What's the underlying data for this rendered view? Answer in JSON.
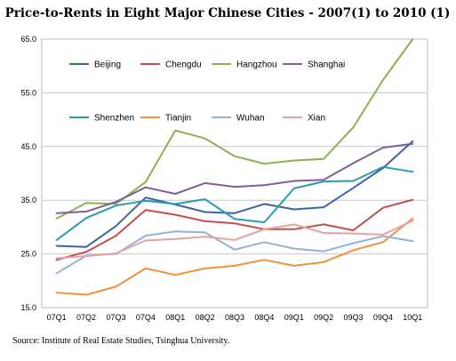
{
  "chart_data": {
    "type": "line",
    "title": "Price-to-Rents in Eight Major Chinese Cities - 2007(1) to 2010 (1)",
    "source": "Source: Institute of Real Estate Studies, Tsinghua University.",
    "categories": [
      "07Q1",
      "07Q2",
      "07Q3",
      "07Q4",
      "08Q1",
      "08Q2",
      "08Q3",
      "08Q4",
      "09Q1",
      "09Q2",
      "09Q3",
      "09Q4",
      "10Q1"
    ],
    "ylim": [
      15,
      65
    ],
    "yticks": [
      "15.0",
      "25.0",
      "35.0",
      "45.0",
      "55.0",
      "65.0"
    ],
    "grid": true,
    "legend_position": "top",
    "series": [
      {
        "name": "Beijing",
        "color": "#3b64a5",
        "values": [
          26.5,
          26.3,
          30.2,
          35.5,
          34.2,
          32.8,
          32.6,
          34.3,
          33.3,
          33.7,
          37.3,
          41.0,
          46.0
        ]
      },
      {
        "name": "Chengdu",
        "color": "#c0504d",
        "values": [
          23.9,
          25.4,
          28.4,
          33.2,
          32.3,
          31.1,
          30.7,
          29.6,
          29.6,
          30.5,
          29.4,
          33.6,
          35.1
        ]
      },
      {
        "name": "Hangzhou",
        "color": "#8fb050",
        "values": [
          31.6,
          34.5,
          34.3,
          38.4,
          48.0,
          46.5,
          43.2,
          41.8,
          42.4,
          42.7,
          48.6,
          57.4,
          65.0
        ]
      },
      {
        "name": "Shanghai",
        "color": "#7d5f9c",
        "values": [
          32.6,
          32.9,
          34.7,
          37.4,
          36.2,
          38.2,
          37.5,
          37.8,
          38.6,
          38.8,
          41.9,
          44.8,
          45.5
        ]
      },
      {
        "name": "Shenzhen",
        "color": "#2a9bb0",
        "values": [
          27.6,
          31.7,
          34.0,
          34.9,
          34.3,
          35.2,
          31.5,
          30.9,
          37.2,
          38.5,
          38.6,
          41.2,
          40.3
        ]
      },
      {
        "name": "Tianjin",
        "color": "#f0923c",
        "values": [
          17.8,
          17.4,
          18.9,
          22.3,
          21.1,
          22.3,
          22.8,
          23.9,
          22.8,
          23.5,
          25.7,
          27.2,
          31.6
        ]
      },
      {
        "name": "Wuhan",
        "color": "#95b1d8",
        "values": [
          21.4,
          24.7,
          25.0,
          28.4,
          29.2,
          29.0,
          25.8,
          27.2,
          26.0,
          25.5,
          27.0,
          28.3,
          27.4
        ]
      },
      {
        "name": "Xian",
        "color": "#e6a1a2",
        "values": [
          24.2,
          24.6,
          25.1,
          27.5,
          27.8,
          28.2,
          27.6,
          29.6,
          30.5,
          28.9,
          28.8,
          28.6,
          31.2
        ]
      }
    ]
  }
}
